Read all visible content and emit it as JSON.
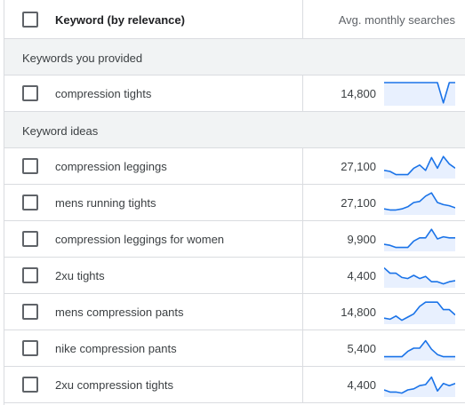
{
  "header": {
    "keyword_col": "Keyword (by relevance)",
    "searches_col": "Avg. monthly searches"
  },
  "groups": {
    "provided_label": "Keywords you provided",
    "ideas_label": "Keyword ideas"
  },
  "provided": [
    {
      "keyword": "compression tights",
      "searches": "14,800",
      "trend": [
        100,
        100,
        100,
        100,
        100,
        100,
        100,
        100,
        100,
        100,
        5,
        100,
        100
      ]
    }
  ],
  "ideas": [
    {
      "keyword": "compression leggings",
      "searches": "27,100",
      "trend": [
        30,
        25,
        10,
        10,
        10,
        40,
        55,
        30,
        90,
        40,
        95,
        60,
        40
      ]
    },
    {
      "keyword": "mens running tights",
      "searches": "27,100",
      "trend": [
        20,
        15,
        15,
        20,
        30,
        50,
        55,
        80,
        95,
        50,
        40,
        35,
        25
      ]
    },
    {
      "keyword": "compression leggings for women",
      "searches": "9,900",
      "trend": [
        25,
        20,
        10,
        10,
        10,
        40,
        55,
        55,
        95,
        50,
        60,
        55,
        55
      ]
    },
    {
      "keyword": "2xu tights",
      "searches": "4,400",
      "trend": [
        85,
        60,
        60,
        40,
        35,
        50,
        35,
        45,
        20,
        20,
        10,
        20,
        25
      ]
    },
    {
      "keyword": "mens compression pants",
      "searches": "14,800",
      "trend": [
        20,
        15,
        30,
        10,
        25,
        40,
        75,
        95,
        95,
        95,
        60,
        60,
        35
      ]
    },
    {
      "keyword": "nike compression pants",
      "searches": "5,400",
      "trend": [
        10,
        10,
        10,
        10,
        35,
        50,
        50,
        85,
        45,
        20,
        10,
        10,
        10
      ]
    },
    {
      "keyword": "2xu compression tights",
      "searches": "4,400",
      "trend": [
        25,
        15,
        15,
        10,
        25,
        30,
        45,
        50,
        85,
        20,
        55,
        45,
        55
      ]
    }
  ],
  "colors": {
    "spark_line": "#1a73e8",
    "spark_fill": "#e8f0fe",
    "group_bg": "#f1f3f4"
  }
}
